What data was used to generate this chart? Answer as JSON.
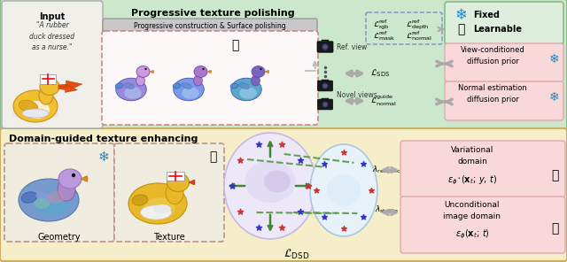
{
  "fig_width": 6.4,
  "fig_height": 2.96,
  "dpi": 100,
  "top_bg": "#cce8cc",
  "bottom_bg": "#f5eec8",
  "input_bg": "#f0efea",
  "pink_box_bg": "#f8d8d8",
  "legend_box_bg": "#ddeedd",
  "dashed_box_color_top": "#cc8888",
  "dashed_box_color_bot": "#c09090",
  "title_top": "Progressive texture polishing",
  "title_bottom": "Domain-guided texture enhancing",
  "label_input": "Input",
  "label_geometry": "Geometry",
  "label_texture": "Texture",
  "label_fixed": "Fixed",
  "label_learnable": "Learnable",
  "label_ref_view": "Ref. view",
  "label_novel_views": "Novel views",
  "label_prog_const": "Progressive construction & Surface polishing",
  "label_view_cond": "View-conditioned\ndiffusion prior",
  "label_normal_est": "Normal estimation\ndiffusion prior",
  "label_var_domain": "Variational\ndomain",
  "label_uncond_domain": "Unconditional\nimage domain",
  "text_input_quote": "\"A rubber\nduck dressed\nas a nurse.\""
}
